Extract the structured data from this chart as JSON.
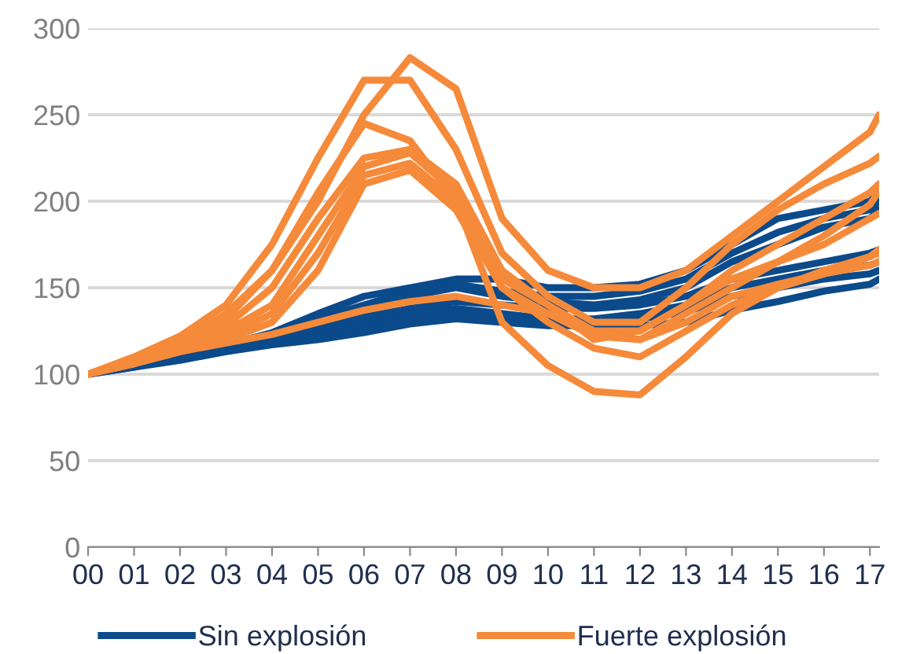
{
  "chart_data": {
    "type": "line",
    "x": [
      0,
      1,
      2,
      3,
      4,
      5,
      6,
      7,
      8,
      9,
      10,
      11,
      12,
      13,
      14,
      15,
      16,
      17,
      17.2
    ],
    "xlim": [
      0,
      17.2
    ],
    "xticks": [
      {
        "value": 0,
        "label": "00"
      },
      {
        "value": 1,
        "label": "01"
      },
      {
        "value": 2,
        "label": "02"
      },
      {
        "value": 3,
        "label": "03"
      },
      {
        "value": 4,
        "label": "04"
      },
      {
        "value": 5,
        "label": "05"
      },
      {
        "value": 6,
        "label": "06"
      },
      {
        "value": 7,
        "label": "07"
      },
      {
        "value": 8,
        "label": "08"
      },
      {
        "value": 9,
        "label": "09"
      },
      {
        "value": 10,
        "label": "10"
      },
      {
        "value": 11,
        "label": "11"
      },
      {
        "value": 12,
        "label": "12"
      },
      {
        "value": 13,
        "label": "13"
      },
      {
        "value": 14,
        "label": "14"
      },
      {
        "value": 15,
        "label": "15"
      },
      {
        "value": 16,
        "label": "16"
      },
      {
        "value": 17,
        "label": "17"
      }
    ],
    "ylim": [
      0,
      300
    ],
    "yticks": [
      0,
      50,
      100,
      150,
      200,
      250,
      300
    ],
    "grid": "y",
    "legend": "bottom",
    "series": [
      {
        "name": "Sin explosión",
        "color": "#0b4a8b",
        "values": [
          100,
          106,
          111,
          117,
          124,
          135,
          145,
          150,
          155,
          155,
          150,
          150,
          152,
          160,
          175,
          190,
          195,
          200,
          205
        ]
      },
      {
        "color": "#0b4a8b",
        "values": [
          100,
          106,
          111,
          117,
          122,
          132,
          140,
          148,
          152,
          148,
          145,
          145,
          148,
          155,
          170,
          182,
          190,
          195,
          200
        ]
      },
      {
        "color": "#0b4a8b",
        "values": [
          100,
          105,
          110,
          116,
          121,
          130,
          138,
          145,
          150,
          145,
          142,
          140,
          143,
          150,
          165,
          175,
          185,
          190,
          195
        ]
      },
      {
        "color": "#0b4a8b",
        "values": [
          100,
          105,
          110,
          115,
          120,
          127,
          133,
          138,
          142,
          140,
          138,
          138,
          140,
          145,
          155,
          160,
          165,
          170,
          172
        ]
      },
      {
        "color": "#0b4a8b",
        "values": [
          100,
          105,
          109,
          114,
          119,
          124,
          130,
          135,
          138,
          135,
          132,
          132,
          135,
          140,
          150,
          155,
          160,
          163,
          165
        ]
      },
      {
        "color": "#0b4a8b",
        "values": [
          100,
          104,
          109,
          114,
          118,
          122,
          127,
          132,
          135,
          133,
          130,
          130,
          132,
          136,
          145,
          150,
          155,
          158,
          160
        ]
      },
      {
        "color": "#0b4a8b",
        "values": [
          100,
          104,
          108,
          113,
          117,
          120,
          124,
          129,
          132,
          130,
          128,
          128,
          128,
          130,
          137,
          142,
          148,
          152,
          155
        ]
      },
      {
        "name": "Fuerte explosión",
        "color": "#f58a3a",
        "values": [
          100,
          108,
          118,
          135,
          160,
          200,
          250,
          283,
          265,
          190,
          160,
          150,
          150,
          160,
          180,
          200,
          220,
          240,
          250
        ]
      },
      {
        "color": "#f58a3a",
        "values": [
          100,
          110,
          122,
          140,
          175,
          225,
          270,
          270,
          230,
          170,
          145,
          130,
          130,
          150,
          175,
          195,
          210,
          222,
          226
        ]
      },
      {
        "color": "#f58a3a",
        "values": [
          100,
          108,
          120,
          132,
          160,
          205,
          245,
          235,
          200,
          130,
          105,
          90,
          88,
          110,
          135,
          150,
          160,
          168,
          172
        ]
      },
      {
        "color": "#f58a3a",
        "values": [
          100,
          108,
          118,
          128,
          150,
          190,
          225,
          230,
          210,
          160,
          140,
          120,
          125,
          140,
          160,
          175,
          190,
          205,
          210
        ]
      },
      {
        "color": "#f58a3a",
        "values": [
          100,
          107,
          115,
          125,
          140,
          180,
          220,
          228,
          205,
          150,
          135,
          122,
          120,
          135,
          150,
          165,
          180,
          198,
          206
        ]
      },
      {
        "color": "#f58a3a",
        "values": [
          100,
          107,
          114,
          122,
          135,
          170,
          215,
          222,
          200,
          155,
          140,
          125,
          125,
          140,
          155,
          165,
          175,
          190,
          193
        ]
      },
      {
        "color": "#f58a3a",
        "values": [
          100,
          106,
          113,
          120,
          130,
          160,
          210,
          218,
          195,
          150,
          130,
          115,
          110,
          125,
          140,
          150,
          158,
          168,
          170
        ]
      },
      {
        "color": "#f58a3a",
        "values": [
          100,
          106,
          113,
          118,
          123,
          130,
          137,
          142,
          145,
          140,
          135,
          125,
          120,
          130,
          145,
          152,
          158,
          163,
          165
        ]
      }
    ]
  }
}
